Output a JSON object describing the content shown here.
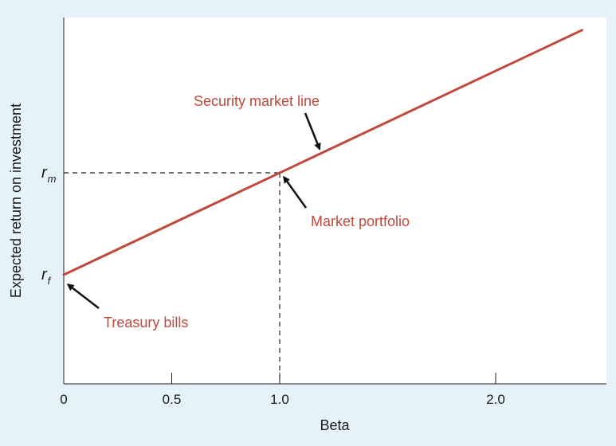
{
  "chart_data": {
    "type": "line",
    "title": "",
    "xlabel": "Beta",
    "ylabel": "Expected return on investment",
    "xlim": [
      0,
      2.6
    ],
    "x_ticks": [
      {
        "value": 0,
        "label": "0"
      },
      {
        "value": 0.5,
        "label": "0.5"
      },
      {
        "value": 1.0,
        "label": "1.0"
      },
      {
        "value": 2.0,
        "label": "2.0"
      }
    ],
    "y_ticks": [
      {
        "key": "rm",
        "main": "r",
        "sub": "m",
        "value": 1.0
      },
      {
        "key": "rf",
        "main": "r",
        "sub": "f",
        "value": 0.0
      }
    ],
    "series": [
      {
        "name": "Security market line",
        "color": "#c0483c",
        "x": [
          0,
          2.4
        ],
        "y": [
          0,
          2.4
        ]
      }
    ],
    "guides": {
      "market_beta": 1.0,
      "market_return": 1.0,
      "style": "dashed"
    },
    "annotations": [
      {
        "key": "sml",
        "text": "Security market line",
        "target_x": 1.2,
        "target_y": 1.2
      },
      {
        "key": "market",
        "text": "Market portfolio",
        "target_x": 1.0,
        "target_y": 1.0
      },
      {
        "key": "treasury",
        "text": "Treasury bills",
        "target_x": 0.0,
        "target_y": 0.0
      }
    ],
    "grid": false,
    "legend": "none"
  }
}
